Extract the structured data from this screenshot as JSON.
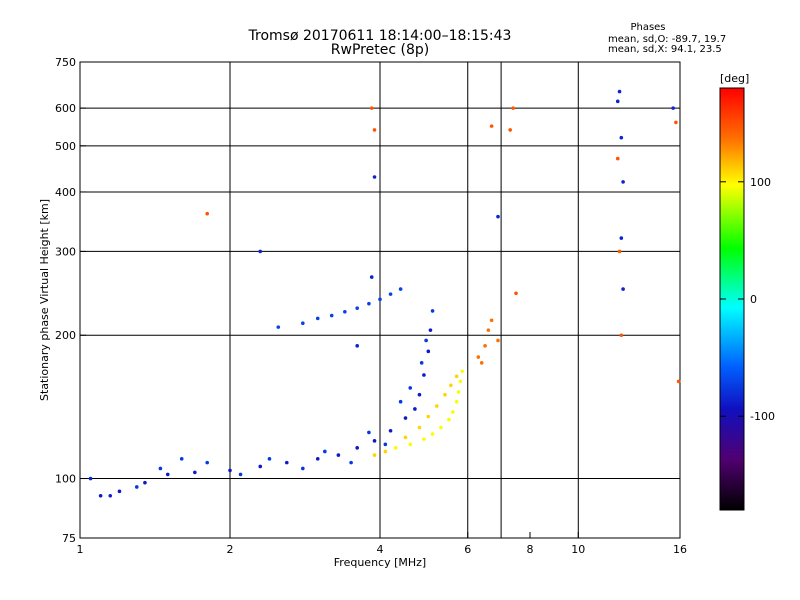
{
  "chart_data": {
    "type": "scatter",
    "title": "Tromsø 20170611 18:14:00–18:15:43",
    "subtitle": "RwPretec (8p)",
    "phases": {
      "heading": "Phases",
      "o_line": "mean, sd,O: -89.7, 19.7",
      "x_line": "mean, sd,X:  94.1, 23.5"
    },
    "xlabel": "Frequency [MHz]",
    "ylabel": "Stationary phase Virtual Height [km]",
    "x_scale": "log",
    "y_scale": "log",
    "xlim": [
      1,
      16
    ],
    "ylim": [
      75,
      750
    ],
    "x_ticks": [
      1,
      2,
      4,
      6,
      8,
      10,
      16
    ],
    "y_ticks": [
      75,
      100,
      200,
      300,
      400,
      500,
      600,
      750
    ],
    "x_grid": [
      2,
      4,
      6,
      7,
      10
    ],
    "y_grid": [
      100,
      200,
      300,
      400,
      500,
      600
    ],
    "colorbar": {
      "label": "[deg]",
      "range": [
        -180,
        180
      ],
      "ticks": [
        {
          "value": 100,
          "label": "100"
        },
        {
          "value": 0,
          "label": "0"
        },
        {
          "value": -100,
          "label": "-100"
        }
      ]
    },
    "clusters": [
      {
        "name": "main-o-trace",
        "phase": -95,
        "points": [
          [
            1.1,
            92
          ],
          [
            1.2,
            94
          ],
          [
            1.35,
            98
          ],
          [
            1.5,
            102
          ],
          [
            1.7,
            103
          ],
          [
            2.0,
            104
          ],
          [
            2.3,
            106
          ],
          [
            2.6,
            108
          ],
          [
            3.0,
            110
          ],
          [
            3.3,
            112
          ],
          [
            3.6,
            116
          ],
          [
            3.9,
            120
          ],
          [
            4.2,
            126
          ],
          [
            4.5,
            134
          ],
          [
            4.7,
            140
          ],
          [
            4.8,
            150
          ],
          [
            4.9,
            165
          ],
          [
            5.0,
            185
          ],
          [
            5.05,
            205
          ]
        ]
      },
      {
        "name": "main-o-spread",
        "phase": -80,
        "points": [
          [
            1.3,
            96
          ],
          [
            1.45,
            105
          ],
          [
            1.6,
            110
          ],
          [
            1.8,
            108
          ],
          [
            2.1,
            102
          ],
          [
            2.4,
            110
          ],
          [
            2.8,
            105
          ],
          [
            3.1,
            114
          ],
          [
            3.5,
            108
          ],
          [
            3.8,
            125
          ],
          [
            4.1,
            118
          ],
          [
            4.4,
            145
          ],
          [
            4.6,
            155
          ],
          [
            4.85,
            175
          ],
          [
            4.95,
            195
          ],
          [
            5.1,
            225
          ]
        ]
      },
      {
        "name": "x-trace",
        "phase": 95,
        "points": [
          [
            4.3,
            116
          ],
          [
            4.6,
            118
          ],
          [
            4.9,
            121
          ],
          [
            5.1,
            124
          ],
          [
            5.3,
            128
          ],
          [
            5.5,
            133
          ],
          [
            5.6,
            138
          ],
          [
            5.7,
            145
          ],
          [
            5.75,
            152
          ],
          [
            5.8,
            160
          ],
          [
            5.85,
            168
          ]
        ]
      },
      {
        "name": "x-spread",
        "phase": 110,
        "points": [
          [
            4.5,
            122
          ],
          [
            4.8,
            128
          ],
          [
            5.0,
            135
          ],
          [
            5.2,
            142
          ],
          [
            5.4,
            150
          ],
          [
            5.55,
            157
          ],
          [
            5.7,
            164
          ],
          [
            3.9,
            112
          ],
          [
            4.1,
            114
          ]
        ]
      },
      {
        "name": "f-layer-echo",
        "phase": -75,
        "points": [
          [
            2.5,
            208
          ],
          [
            2.8,
            212
          ],
          [
            3.0,
            217
          ],
          [
            3.2,
            220
          ],
          [
            3.4,
            224
          ],
          [
            3.6,
            228
          ],
          [
            3.8,
            233
          ],
          [
            4.0,
            238
          ],
          [
            4.2,
            244
          ],
          [
            4.4,
            250
          ]
        ]
      },
      {
        "name": "upper-trace",
        "phase": 140,
        "points": [
          [
            6.3,
            180
          ],
          [
            6.5,
            190
          ],
          [
            6.6,
            205
          ],
          [
            6.7,
            215
          ],
          [
            6.9,
            195
          ],
          [
            6.4,
            175
          ]
        ]
      },
      {
        "name": "sparse-high",
        "phase": -90,
        "points": [
          [
            3.9,
            430
          ],
          [
            3.85,
            265
          ],
          [
            2.3,
            300
          ],
          [
            12.2,
            320
          ],
          [
            12.3,
            250
          ],
          [
            12.0,
            620
          ],
          [
            12.1,
            650
          ],
          [
            12.2,
            520
          ],
          [
            12.3,
            420
          ],
          [
            6.9,
            355
          ],
          [
            15.5,
            600
          ],
          [
            3.6,
            190
          ],
          [
            1.05,
            100
          ],
          [
            1.15,
            92
          ]
        ]
      },
      {
        "name": "sparse-warm",
        "phase": 150,
        "points": [
          [
            3.85,
            600
          ],
          [
            3.9,
            540
          ],
          [
            7.4,
            600
          ],
          [
            7.3,
            540
          ],
          [
            6.7,
            550
          ],
          [
            12.0,
            470
          ],
          [
            12.1,
            300
          ],
          [
            12.2,
            200
          ],
          [
            1.8,
            360
          ],
          [
            15.7,
            560
          ],
          [
            15.9,
            160
          ],
          [
            7.5,
            245
          ]
        ]
      }
    ]
  }
}
